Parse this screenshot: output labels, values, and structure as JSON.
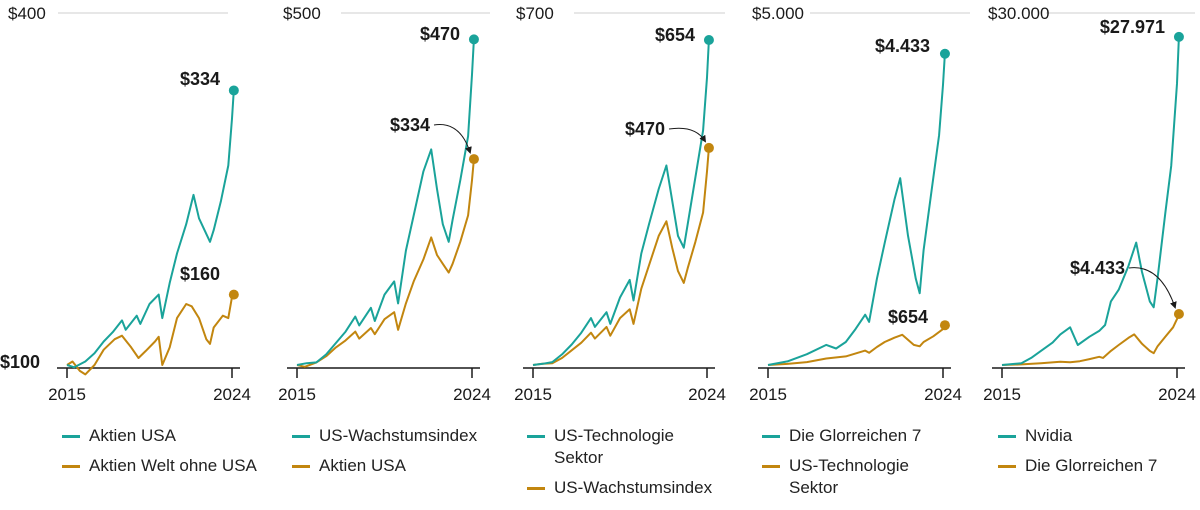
{
  "colors": {
    "teal": "#1aa39a",
    "gold": "#c2860f",
    "axis": "#1a1a1a",
    "grid": "#cfcfcf",
    "text": "#1a1a1a"
  },
  "x_tick_labels": [
    "2015",
    "2024"
  ],
  "baseline_label": "$100",
  "chart_data": [
    {
      "type": "line",
      "x": [
        2015,
        2024
      ],
      "ylim": [
        100,
        400
      ],
      "top_label": "$400",
      "series": [
        {
          "name": "Aktien USA",
          "color": "teal",
          "end_value": 334,
          "end_label": "$334",
          "points": [
            [
              2015,
              100
            ],
            [
              2015.4,
              98
            ],
            [
              2016,
              103
            ],
            [
              2016.5,
              110
            ],
            [
              2017,
              120
            ],
            [
              2017.5,
              128
            ],
            [
              2018,
              138
            ],
            [
              2018.2,
              130
            ],
            [
              2018.8,
              142
            ],
            [
              2019,
              135
            ],
            [
              2019.5,
              152
            ],
            [
              2020,
              160
            ],
            [
              2020.2,
              140
            ],
            [
              2020.6,
              170
            ],
            [
              2021,
              195
            ],
            [
              2021.5,
              220
            ],
            [
              2021.9,
              245
            ],
            [
              2022.2,
              225
            ],
            [
              2022.5,
              215
            ],
            [
              2022.8,
              205
            ],
            [
              2023,
              215
            ],
            [
              2023.4,
              240
            ],
            [
              2023.8,
              270
            ],
            [
              2024,
              310
            ],
            [
              2024.1,
              334
            ]
          ]
        },
        {
          "name": "Aktien Welt ohne USA",
          "color": "gold",
          "end_value": 160,
          "end_label": "$160",
          "points": [
            [
              2015,
              100
            ],
            [
              2015.3,
              103
            ],
            [
              2015.7,
              95
            ],
            [
              2016,
              92
            ],
            [
              2016.5,
              100
            ],
            [
              2017,
              113
            ],
            [
              2017.6,
              122
            ],
            [
              2018,
              125
            ],
            [
              2018.5,
              115
            ],
            [
              2018.9,
              106
            ],
            [
              2019.3,
              112
            ],
            [
              2019.8,
              120
            ],
            [
              2020,
              124
            ],
            [
              2020.2,
              100
            ],
            [
              2020.6,
              115
            ],
            [
              2021,
              140
            ],
            [
              2021.5,
              152
            ],
            [
              2021.8,
              150
            ],
            [
              2022.2,
              140
            ],
            [
              2022.6,
              122
            ],
            [
              2022.8,
              118
            ],
            [
              2023,
              132
            ],
            [
              2023.5,
              142
            ],
            [
              2023.8,
              140
            ],
            [
              2024,
              158
            ],
            [
              2024.1,
              160
            ]
          ]
        }
      ]
    },
    {
      "type": "line",
      "x": [
        2015,
        2024
      ],
      "ylim": [
        100,
        500
      ],
      "top_label": "$500",
      "series": [
        {
          "name": "US-Wachstumsindex",
          "color": "teal",
          "end_value": 470,
          "end_label": "$470",
          "points": [
            [
              2015,
              100
            ],
            [
              2015.5,
              102
            ],
            [
              2016,
              103
            ],
            [
              2016.5,
              112
            ],
            [
              2017,
              125
            ],
            [
              2017.5,
              138
            ],
            [
              2018,
              155
            ],
            [
              2018.2,
              145
            ],
            [
              2018.8,
              165
            ],
            [
              2019,
              150
            ],
            [
              2019.5,
              180
            ],
            [
              2020,
              195
            ],
            [
              2020.2,
              170
            ],
            [
              2020.6,
              230
            ],
            [
              2021,
              270
            ],
            [
              2021.5,
              320
            ],
            [
              2021.9,
              345
            ],
            [
              2022.2,
              300
            ],
            [
              2022.5,
              260
            ],
            [
              2022.8,
              240
            ],
            [
              2023,
              265
            ],
            [
              2023.4,
              310
            ],
            [
              2023.8,
              360
            ],
            [
              2024,
              430
            ],
            [
              2024.1,
              470
            ]
          ]
        },
        {
          "name": "Aktien USA",
          "color": "gold",
          "end_value": 334,
          "end_label": "$334",
          "points": [
            [
              2015,
              100
            ],
            [
              2015.4,
              98
            ],
            [
              2016,
              103
            ],
            [
              2016.5,
              110
            ],
            [
              2017,
              120
            ],
            [
              2017.5,
              128
            ],
            [
              2018,
              138
            ],
            [
              2018.2,
              130
            ],
            [
              2018.8,
              142
            ],
            [
              2019,
              135
            ],
            [
              2019.5,
              152
            ],
            [
              2020,
              160
            ],
            [
              2020.2,
              140
            ],
            [
              2020.6,
              170
            ],
            [
              2021,
              195
            ],
            [
              2021.5,
              220
            ],
            [
              2021.9,
              245
            ],
            [
              2022.2,
              225
            ],
            [
              2022.5,
              215
            ],
            [
              2022.8,
              205
            ],
            [
              2023,
              215
            ],
            [
              2023.4,
              240
            ],
            [
              2023.8,
              270
            ],
            [
              2024,
              310
            ],
            [
              2024.1,
              334
            ]
          ]
        }
      ]
    },
    {
      "type": "line",
      "x": [
        2015,
        2024
      ],
      "ylim": [
        100,
        700
      ],
      "top_label": "$700",
      "series": [
        {
          "name": "US-Technologie Sektor",
          "color": "teal",
          "end_value": 654,
          "end_label": "$654",
          "points": [
            [
              2015,
              100
            ],
            [
              2015.5,
              102
            ],
            [
              2016,
              105
            ],
            [
              2016.5,
              118
            ],
            [
              2017,
              135
            ],
            [
              2017.5,
              155
            ],
            [
              2018,
              180
            ],
            [
              2018.2,
              165
            ],
            [
              2018.8,
              190
            ],
            [
              2019,
              170
            ],
            [
              2019.5,
              215
            ],
            [
              2020,
              245
            ],
            [
              2020.2,
              210
            ],
            [
              2020.6,
              290
            ],
            [
              2021,
              340
            ],
            [
              2021.5,
              400
            ],
            [
              2021.9,
              440
            ],
            [
              2022.2,
              380
            ],
            [
              2022.5,
              320
            ],
            [
              2022.8,
              300
            ],
            [
              2023,
              340
            ],
            [
              2023.4,
              420
            ],
            [
              2023.8,
              500
            ],
            [
              2024,
              590
            ],
            [
              2024.1,
              654
            ]
          ]
        },
        {
          "name": "US-Wachstumsindex",
          "color": "gold",
          "end_value": 470,
          "end_label": "$470",
          "points": [
            [
              2015,
              100
            ],
            [
              2015.5,
              102
            ],
            [
              2016,
              103
            ],
            [
              2016.5,
              112
            ],
            [
              2017,
              125
            ],
            [
              2017.5,
              138
            ],
            [
              2018,
              155
            ],
            [
              2018.2,
              145
            ],
            [
              2018.8,
              165
            ],
            [
              2019,
              150
            ],
            [
              2019.5,
              180
            ],
            [
              2020,
              195
            ],
            [
              2020.2,
              170
            ],
            [
              2020.6,
              230
            ],
            [
              2021,
              270
            ],
            [
              2021.5,
              320
            ],
            [
              2021.9,
              345
            ],
            [
              2022.2,
              300
            ],
            [
              2022.5,
              260
            ],
            [
              2022.8,
              240
            ],
            [
              2023,
              265
            ],
            [
              2023.4,
              310
            ],
            [
              2023.8,
              360
            ],
            [
              2024,
              430
            ],
            [
              2024.1,
              470
            ]
          ]
        }
      ]
    },
    {
      "type": "line",
      "x": [
        2015,
        2024
      ],
      "ylim": [
        100,
        5000
      ],
      "top_label": "$5.000",
      "series": [
        {
          "name": "Die Glorreichen 7",
          "color": "teal",
          "end_value": 4433,
          "end_label": "$4.433",
          "points": [
            [
              2015,
              100
            ],
            [
              2016,
              150
            ],
            [
              2017,
              250
            ],
            [
              2018,
              380
            ],
            [
              2018.5,
              330
            ],
            [
              2019,
              420
            ],
            [
              2019.5,
              600
            ],
            [
              2020,
              800
            ],
            [
              2020.2,
              700
            ],
            [
              2020.6,
              1300
            ],
            [
              2021,
              1800
            ],
            [
              2021.5,
              2400
            ],
            [
              2021.8,
              2700
            ],
            [
              2022.2,
              1900
            ],
            [
              2022.6,
              1300
            ],
            [
              2022.8,
              1100
            ],
            [
              2023,
              1700
            ],
            [
              2023.4,
              2500
            ],
            [
              2023.8,
              3300
            ],
            [
              2024,
              4000
            ],
            [
              2024.1,
              4433
            ]
          ]
        },
        {
          "name": "US-Technologie Sektor",
          "color": "gold",
          "end_value": 654,
          "end_label": "$654",
          "points": [
            [
              2015,
              100
            ],
            [
              2016,
              115
            ],
            [
              2017,
              140
            ],
            [
              2018,
              190
            ],
            [
              2019,
              220
            ],
            [
              2020,
              300
            ],
            [
              2020.2,
              270
            ],
            [
              2020.6,
              350
            ],
            [
              2021,
              420
            ],
            [
              2021.5,
              480
            ],
            [
              2021.9,
              520
            ],
            [
              2022.5,
              380
            ],
            [
              2022.8,
              360
            ],
            [
              2023,
              420
            ],
            [
              2023.5,
              500
            ],
            [
              2024,
              600
            ],
            [
              2024.1,
              654
            ]
          ]
        }
      ]
    },
    {
      "type": "line",
      "x": [
        2015,
        2024
      ],
      "ylim": [
        100,
        30000
      ],
      "top_label": "$30.000",
      "series": [
        {
          "name": "Nvidia",
          "color": "teal",
          "end_value": 27971,
          "end_label": "$27.971",
          "points": [
            [
              2015,
              100
            ],
            [
              2016,
              250
            ],
            [
              2016.5,
              700
            ],
            [
              2017,
              1300
            ],
            [
              2017.6,
              2000
            ],
            [
              2018,
              2700
            ],
            [
              2018.5,
              3300
            ],
            [
              2018.9,
              1800
            ],
            [
              2019.5,
              2500
            ],
            [
              2020,
              3000
            ],
            [
              2020.3,
              3500
            ],
            [
              2020.6,
              5500
            ],
            [
              2021,
              6500
            ],
            [
              2021.5,
              8500
            ],
            [
              2021.9,
              10500
            ],
            [
              2022.2,
              8000
            ],
            [
              2022.6,
              5500
            ],
            [
              2022.8,
              5000
            ],
            [
              2023,
              7500
            ],
            [
              2023.4,
              13000
            ],
            [
              2023.7,
              17000
            ],
            [
              2024,
              24000
            ],
            [
              2024.1,
              27971
            ]
          ]
        },
        {
          "name": "Die Glorreichen 7",
          "color": "gold",
          "end_value": 4433,
          "end_label": "$4.433",
          "points": [
            [
              2015,
              100
            ],
            [
              2016,
              150
            ],
            [
              2017,
              250
            ],
            [
              2018,
              380
            ],
            [
              2018.5,
              330
            ],
            [
              2019,
              420
            ],
            [
              2019.5,
              600
            ],
            [
              2020,
              800
            ],
            [
              2020.2,
              700
            ],
            [
              2020.6,
              1300
            ],
            [
              2021,
              1800
            ],
            [
              2021.5,
              2400
            ],
            [
              2021.8,
              2700
            ],
            [
              2022.2,
              1900
            ],
            [
              2022.6,
              1300
            ],
            [
              2022.8,
              1100
            ],
            [
              2023,
              1700
            ],
            [
              2023.4,
              2500
            ],
            [
              2023.8,
              3300
            ],
            [
              2024,
              4000
            ],
            [
              2024.1,
              4433
            ]
          ]
        }
      ]
    }
  ],
  "legends": [
    [
      {
        "label": "Aktien USA",
        "color": "teal"
      },
      {
        "label": "Aktien Welt ohne USA",
        "color": "gold"
      }
    ],
    [
      {
        "label": "US-Wachstumsindex",
        "color": "teal"
      },
      {
        "label": "Aktien USA",
        "color": "gold"
      }
    ],
    [
      {
        "label": "US-Technologie Sektor",
        "color": "teal"
      },
      {
        "label": "US-Wachstumsindex",
        "color": "gold"
      }
    ],
    [
      {
        "label": "Die Glorreichen 7",
        "color": "teal"
      },
      {
        "label": "US-Technologie Sektor",
        "color": "gold"
      }
    ],
    [
      {
        "label": "Nvidia",
        "color": "teal"
      },
      {
        "label": "Die Glorreichen 7",
        "color": "gold"
      }
    ]
  ]
}
